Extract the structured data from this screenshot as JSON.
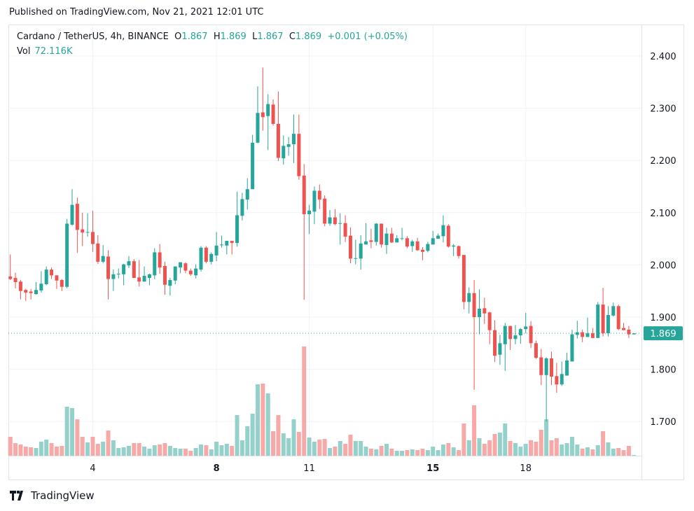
{
  "published": "Published on TradingView.com, Nov 21, 2021 12:01 UTC",
  "legend": {
    "symbol": "Cardano / TetherUS, 4h, BINANCE",
    "open_label": "O",
    "open": "1.867",
    "high_label": "H",
    "high": "1.869",
    "low_label": "L",
    "low": "1.867",
    "close_label": "C",
    "close": "1.869",
    "change": "+0.001 (+0.05%)",
    "vol_label": "Vol",
    "vol": "72.116K"
  },
  "logo": "TradingView",
  "colors": {
    "up": "#26a69a",
    "down": "#ef5350",
    "up_volume": "#94d1cb",
    "down_volume": "#f7a9a7",
    "grid": "#f0f3fa"
  },
  "chart_data": {
    "type": "candlestick",
    "interval": "4h",
    "price_axis_ticks": [
      "2.400",
      "2.300",
      "2.200",
      "2.100",
      "2.000",
      "1.900",
      "1.800",
      "1.700"
    ],
    "price_ticks_values": [
      2.4,
      2.3,
      2.2,
      2.1,
      2.0,
      1.9,
      1.8,
      1.7
    ],
    "date_ticks": [
      "4",
      "8",
      "11",
      "15",
      "18"
    ],
    "last_price": "1.869",
    "last_price_value": 1.869,
    "volume_unit": "relative",
    "ohlcv_columns": [
      "open",
      "high",
      "low",
      "close",
      "volume"
    ],
    "candles": [
      [
        1.978,
        2.02,
        1.971,
        1.973,
        27
      ],
      [
        1.975,
        1.985,
        1.955,
        1.967,
        18
      ],
      [
        1.968,
        1.971,
        1.934,
        1.95,
        16
      ],
      [
        1.952,
        1.954,
        1.931,
        1.947,
        13
      ],
      [
        1.949,
        1.954,
        1.934,
        1.946,
        12
      ],
      [
        1.944,
        1.967,
        1.943,
        1.952,
        11
      ],
      [
        1.951,
        1.988,
        1.947,
        1.964,
        20
      ],
      [
        1.963,
        1.997,
        1.961,
        1.991,
        23
      ],
      [
        1.991,
        1.995,
        1.973,
        1.98,
        18
      ],
      [
        1.98,
        1.98,
        1.954,
        1.97,
        13
      ],
      [
        1.971,
        1.973,
        1.95,
        1.958,
        14
      ],
      [
        1.958,
        2.088,
        1.955,
        2.079,
        70
      ],
      [
        2.077,
        2.145,
        2.075,
        2.115,
        68
      ],
      [
        2.117,
        2.129,
        2.023,
        2.067,
        52
      ],
      [
        2.068,
        2.1,
        2.036,
        2.062,
        27
      ],
      [
        2.062,
        2.099,
        2.054,
        2.063,
        19
      ],
      [
        2.063,
        2.104,
        2.025,
        2.04,
        27
      ],
      [
        2.041,
        2.057,
        2.002,
        2.006,
        17
      ],
      [
        2.006,
        2.038,
        2.003,
        2.017,
        20
      ],
      [
        2.016,
        2.028,
        1.934,
        1.973,
        36
      ],
      [
        1.973,
        1.991,
        1.95,
        1.982,
        22
      ],
      [
        1.982,
        1.993,
        1.974,
        1.983,
        11
      ],
      [
        1.982,
        2.002,
        1.961,
        2.001,
        12
      ],
      [
        1.999,
        2.017,
        1.994,
        2.007,
        14
      ],
      [
        2.007,
        2.011,
        1.975,
        1.975,
        18
      ],
      [
        1.976,
        2.009,
        1.959,
        1.968,
        18
      ],
      [
        1.968,
        1.997,
        1.968,
        1.979,
        13
      ],
      [
        1.975,
        1.983,
        1.961,
        1.982,
        10
      ],
      [
        1.98,
        2.032,
        1.973,
        2.024,
        15
      ],
      [
        2.024,
        2.04,
        1.983,
        1.995,
        16
      ],
      [
        1.998,
        2.006,
        1.943,
        1.962,
        18
      ],
      [
        1.96,
        1.975,
        1.941,
        1.971,
        14
      ],
      [
        1.97,
        1.997,
        1.963,
        1.997,
        11
      ],
      [
        1.995,
        2.005,
        1.984,
        2.005,
        10
      ],
      [
        2.003,
        2.005,
        1.984,
        1.989,
        10
      ],
      [
        1.989,
        1.993,
        1.979,
        1.982,
        7
      ],
      [
        1.98,
        2.001,
        1.974,
        1.993,
        11
      ],
      [
        1.991,
        2.036,
        1.987,
        2.033,
        16
      ],
      [
        2.033,
        2.036,
        2.003,
        2.006,
        15
      ],
      [
        2.006,
        2.024,
        2.001,
        2.021,
        9
      ],
      [
        2.018,
        2.063,
        2.007,
        2.037,
        20
      ],
      [
        2.038,
        2.056,
        2.033,
        2.039,
        15
      ],
      [
        2.037,
        2.046,
        2.02,
        2.046,
        17
      ],
      [
        2.046,
        2.046,
        2.02,
        2.042,
        14
      ],
      [
        2.042,
        2.14,
        2.035,
        2.095,
        58
      ],
      [
        2.094,
        2.138,
        2.085,
        2.126,
        22
      ],
      [
        2.125,
        2.166,
        2.106,
        2.145,
        42
      ],
      [
        2.145,
        2.249,
        2.145,
        2.234,
        60
      ],
      [
        2.234,
        2.342,
        2.233,
        2.291,
        102
      ],
      [
        2.292,
        2.378,
        2.257,
        2.283,
        103
      ],
      [
        2.285,
        2.327,
        2.22,
        2.308,
        89
      ],
      [
        2.307,
        2.317,
        2.267,
        2.27,
        35
      ],
      [
        2.27,
        2.332,
        2.199,
        2.205,
        58
      ],
      [
        2.204,
        2.248,
        2.192,
        2.228,
        32
      ],
      [
        2.226,
        2.245,
        2.209,
        2.231,
        25
      ],
      [
        2.231,
        2.288,
        2.195,
        2.251,
        52
      ],
      [
        2.251,
        2.288,
        2.163,
        2.17,
        34
      ],
      [
        2.171,
        2.193,
        1.933,
        2.097,
        156
      ],
      [
        2.097,
        2.115,
        2.059,
        2.104,
        26
      ],
      [
        2.102,
        2.15,
        2.078,
        2.142,
        20
      ],
      [
        2.142,
        2.154,
        2.107,
        2.125,
        23
      ],
      [
        2.127,
        2.133,
        2.074,
        2.079,
        24
      ],
      [
        2.079,
        2.105,
        2.075,
        2.091,
        11
      ],
      [
        2.091,
        2.107,
        2.076,
        2.078,
        13
      ],
      [
        2.079,
        2.099,
        2.039,
        2.08,
        21
      ],
      [
        2.08,
        2.095,
        2.044,
        2.054,
        17
      ],
      [
        2.056,
        2.072,
        2.003,
        2.012,
        30
      ],
      [
        2.012,
        2.048,
        2.001,
        2.013,
        21
      ],
      [
        2.012,
        2.057,
        1.991,
        2.041,
        21
      ],
      [
        2.039,
        2.08,
        2.039,
        2.045,
        13
      ],
      [
        2.047,
        2.069,
        2.032,
        2.044,
        10
      ],
      [
        2.044,
        2.08,
        2.037,
        2.079,
        9
      ],
      [
        2.079,
        2.079,
        2.033,
        2.039,
        14
      ],
      [
        2.038,
        2.071,
        2.021,
        2.06,
        17
      ],
      [
        2.06,
        2.071,
        2.042,
        2.043,
        10
      ],
      [
        2.043,
        2.057,
        2.043,
        2.051,
        7
      ],
      [
        2.05,
        2.071,
        2.047,
        2.051,
        7
      ],
      [
        2.051,
        2.055,
        2.032,
        2.035,
        8
      ],
      [
        2.036,
        2.048,
        2.025,
        2.045,
        9
      ],
      [
        2.045,
        2.052,
        2.027,
        2.028,
        8
      ],
      [
        2.029,
        2.034,
        2.009,
        2.025,
        10
      ],
      [
        2.027,
        2.044,
        2.024,
        2.04,
        8
      ],
      [
        2.039,
        2.065,
        2.039,
        2.051,
        13
      ],
      [
        2.05,
        2.06,
        2.05,
        2.056,
        8
      ],
      [
        2.055,
        2.095,
        2.043,
        2.076,
        16
      ],
      [
        2.075,
        2.078,
        2.033,
        2.035,
        18
      ],
      [
        2.035,
        2.04,
        2.017,
        2.037,
        12
      ],
      [
        2.036,
        2.037,
        2.012,
        2.017,
        8
      ],
      [
        2.019,
        2.019,
        1.915,
        1.929,
        46
      ],
      [
        1.929,
        1.957,
        1.907,
        1.946,
        22
      ],
      [
        1.946,
        1.971,
        1.761,
        1.9,
        72
      ],
      [
        1.9,
        1.953,
        1.867,
        1.916,
        25
      ],
      [
        1.917,
        1.937,
        1.887,
        1.907,
        17
      ],
      [
        1.909,
        1.91,
        1.848,
        1.875,
        22
      ],
      [
        1.875,
        1.894,
        1.814,
        1.826,
        31
      ],
      [
        1.828,
        1.866,
        1.809,
        1.85,
        33
      ],
      [
        1.848,
        1.889,
        1.797,
        1.883,
        46
      ],
      [
        1.883,
        1.883,
        1.837,
        1.858,
        21
      ],
      [
        1.858,
        1.885,
        1.848,
        1.865,
        18
      ],
      [
        1.865,
        1.879,
        1.849,
        1.877,
        13
      ],
      [
        1.877,
        1.908,
        1.869,
        1.882,
        17
      ],
      [
        1.883,
        1.892,
        1.841,
        1.85,
        22
      ],
      [
        1.85,
        1.855,
        1.82,
        1.822,
        20
      ],
      [
        1.823,
        1.839,
        1.77,
        1.789,
        37
      ],
      [
        1.789,
        1.823,
        1.7,
        1.821,
        52
      ],
      [
        1.821,
        1.834,
        1.77,
        1.786,
        22
      ],
      [
        1.787,
        1.812,
        1.755,
        1.771,
        25
      ],
      [
        1.771,
        1.815,
        1.768,
        1.791,
        16
      ],
      [
        1.788,
        1.832,
        1.788,
        1.817,
        18
      ],
      [
        1.815,
        1.876,
        1.815,
        1.867,
        27
      ],
      [
        1.866,
        1.893,
        1.859,
        1.871,
        16
      ],
      [
        1.871,
        1.876,
        1.852,
        1.862,
        10
      ],
      [
        1.862,
        1.899,
        1.862,
        1.869,
        12
      ],
      [
        1.869,
        1.879,
        1.86,
        1.86,
        9
      ],
      [
        1.86,
        1.929,
        1.86,
        1.924,
        15
      ],
      [
        1.924,
        1.956,
        1.863,
        1.869,
        35
      ],
      [
        1.869,
        1.921,
        1.863,
        1.904,
        19
      ],
      [
        1.903,
        1.928,
        1.901,
        1.921,
        10
      ],
      [
        1.921,
        1.924,
        1.875,
        1.877,
        11
      ],
      [
        1.879,
        1.889,
        1.875,
        1.875,
        8
      ],
      [
        1.876,
        1.883,
        1.86,
        1.867,
        14
      ],
      [
        1.867,
        1.869,
        1.867,
        1.869,
        1
      ]
    ]
  }
}
